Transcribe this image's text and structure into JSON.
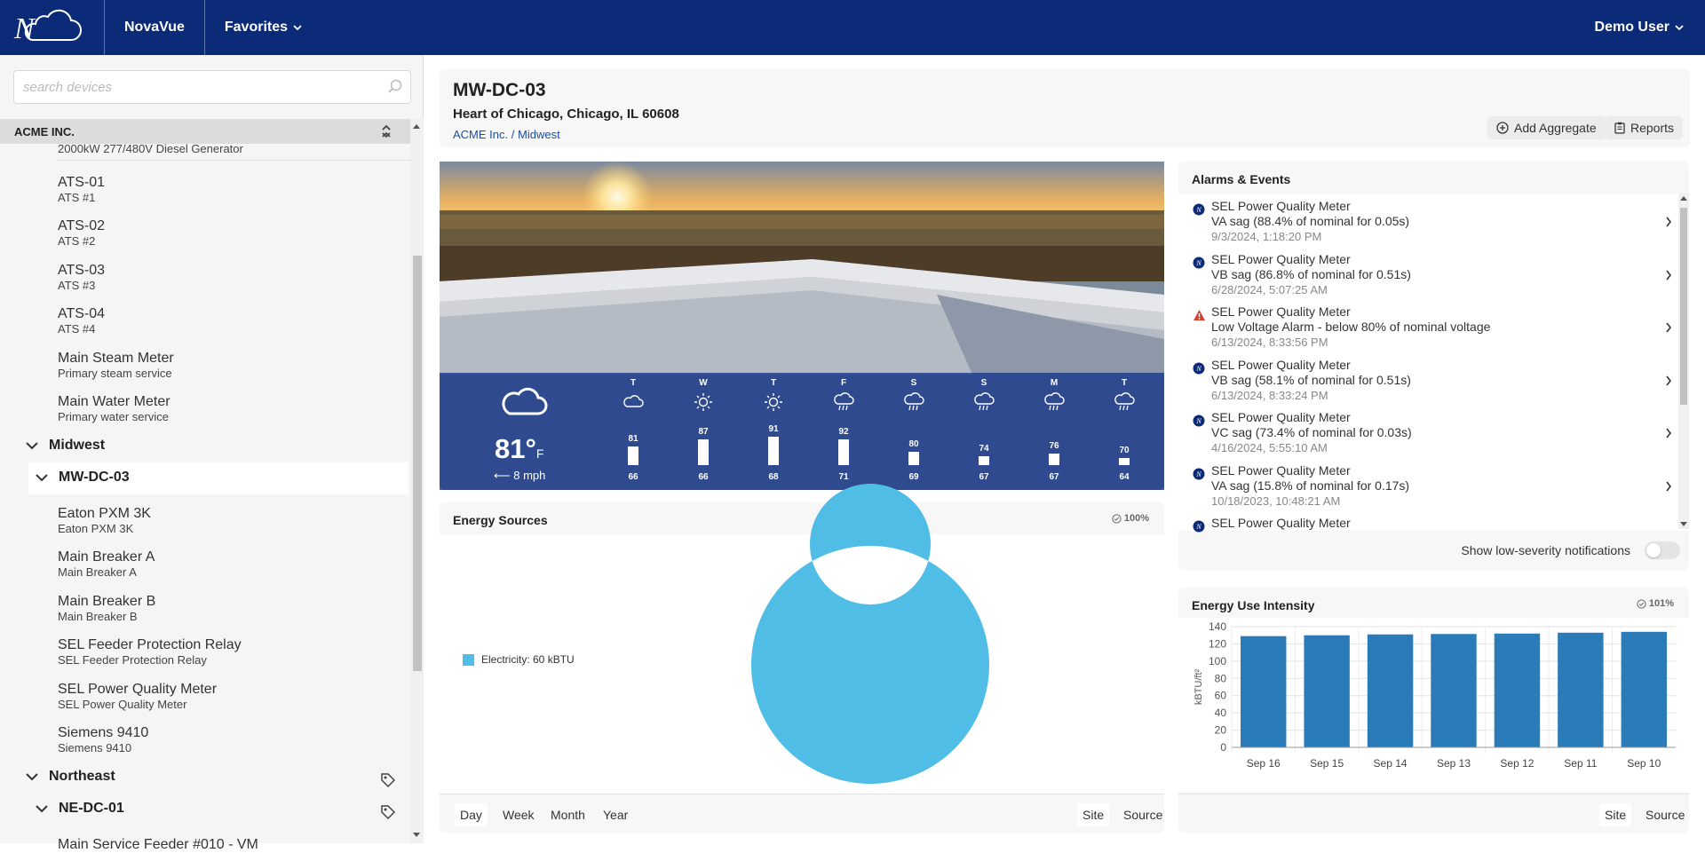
{
  "topbar": {
    "logo_letter": "N",
    "brand": "NovaVue",
    "favorites_label": "Favorites",
    "user_label": "Demo User"
  },
  "sidebar": {
    "search_placeholder": "search devices",
    "company": "ACME INC.",
    "items_top": [
      {
        "title": "",
        "subtitle": "2000kW 277/480V Diesel Generator"
      },
      {
        "title": "ATS-01",
        "subtitle": "ATS #1"
      },
      {
        "title": "ATS-02",
        "subtitle": "ATS #2"
      },
      {
        "title": "ATS-03",
        "subtitle": "ATS #3"
      },
      {
        "title": "ATS-04",
        "subtitle": "ATS #4"
      },
      {
        "title": "Main Steam Meter",
        "subtitle": "Primary steam service"
      },
      {
        "title": "Main Water Meter",
        "subtitle": "Primary water service"
      }
    ],
    "group_midwest": "Midwest",
    "site_mw": "MW-DC-03",
    "items_mw": [
      {
        "title": "Eaton PXM 3K",
        "subtitle": "Eaton PXM 3K"
      },
      {
        "title": "Main Breaker A",
        "subtitle": "Main Breaker A"
      },
      {
        "title": "Main Breaker B",
        "subtitle": "Main Breaker B"
      },
      {
        "title": "SEL Feeder Protection Relay",
        "subtitle": "SEL Feeder Protection Relay"
      },
      {
        "title": "SEL Power Quality Meter",
        "subtitle": "SEL Power Quality Meter"
      },
      {
        "title": "Siemens 9410",
        "subtitle": "Siemens 9410"
      }
    ],
    "group_northeast": "Northeast",
    "site_ne": "NE-DC-01",
    "partial_item": "Main Service Feeder #010 - VM"
  },
  "header": {
    "title": "MW-DC-03",
    "address": "Heart of Chicago, Chicago, IL 60608",
    "breadcrumb_company": "ACME Inc.",
    "breadcrumb_sep": "/",
    "breadcrumb_region": "Midwest",
    "add_aggregate": "Add Aggregate",
    "reports": "Reports"
  },
  "weather": {
    "current_temp": "81°",
    "unit": "F",
    "wind": "8 mph",
    "forecast": [
      {
        "day": "T",
        "icon": "cloud-icon",
        "hi": 81,
        "lo": 66
      },
      {
        "day": "W",
        "icon": "sun-icon",
        "hi": 87,
        "lo": 66
      },
      {
        "day": "T",
        "icon": "sun-icon",
        "hi": 91,
        "lo": 68
      },
      {
        "day": "F",
        "icon": "rain-icon",
        "hi": 92,
        "lo": 71
      },
      {
        "day": "S",
        "icon": "rain-icon",
        "hi": 80,
        "lo": 69
      },
      {
        "day": "S",
        "icon": "rain-icon",
        "hi": 74,
        "lo": 67
      },
      {
        "day": "M",
        "icon": "rain-icon",
        "hi": 76,
        "lo": 67
      },
      {
        "day": "T",
        "icon": "rain-icon",
        "hi": 70,
        "lo": 64
      }
    ]
  },
  "energy_sources": {
    "title": "Energy Sources",
    "coverage": "100%",
    "legend": "Electricity: 60 kBTU",
    "color": "#4fbde6",
    "tabs_period": [
      "Day",
      "Week",
      "Month",
      "Year"
    ],
    "tabs_basis": [
      "Site",
      "Source"
    ]
  },
  "alarms": {
    "title": "Alarms & Events",
    "items": [
      {
        "severity": "info",
        "device": "SEL Power Quality Meter",
        "message": "VA sag (88.4% of nominal for 0.05s)",
        "time": "9/3/2024, 1:18:20 PM"
      },
      {
        "severity": "info",
        "device": "SEL Power Quality Meter",
        "message": "VB sag (86.8% of nominal for 0.51s)",
        "time": "6/28/2024, 5:07:25 AM"
      },
      {
        "severity": "warning",
        "device": "SEL Power Quality Meter",
        "message": "Low Voltage Alarm - below 80% of nominal voltage",
        "time": "6/13/2024, 8:33:56 PM"
      },
      {
        "severity": "info",
        "device": "SEL Power Quality Meter",
        "message": "VB sag (58.1% of nominal for 0.51s)",
        "time": "6/13/2024, 8:33:24 PM"
      },
      {
        "severity": "info",
        "device": "SEL Power Quality Meter",
        "message": "VC sag (73.4% of nominal for 0.03s)",
        "time": "4/16/2024, 5:55:10 AM"
      },
      {
        "severity": "info",
        "device": "SEL Power Quality Meter",
        "message": "VA sag (15.8% of nominal for 0.17s)",
        "time": "10/18/2023, 10:48:21 AM"
      },
      {
        "severity": "info",
        "device": "SEL Power Quality Meter",
        "message": "",
        "time": ""
      }
    ],
    "toggle_label": "Show low-severity notifications"
  },
  "eui": {
    "title": "Energy Use Intensity",
    "coverage": "101%",
    "tabs_basis": [
      "Site",
      "Source"
    ]
  },
  "chart_data": [
    {
      "type": "pie",
      "categories": [
        "Electricity: 60 kBTU"
      ],
      "values": [
        60
      ],
      "color": "#4fbde6"
    },
    {
      "type": "bar",
      "categories": [
        "Sep 16",
        "Sep 15",
        "Sep 14",
        "Sep 13",
        "Sep 12",
        "Sep 11",
        "Sep 10"
      ],
      "values": [
        129,
        130,
        131,
        131.5,
        132,
        133,
        134
      ],
      "ylabel": "kBTU/ft²",
      "ylim": [
        0,
        140
      ],
      "yticks": [
        0,
        20,
        40,
        60,
        80,
        100,
        120,
        140
      ],
      "grid": true,
      "color": "#2b7bb9"
    }
  ]
}
